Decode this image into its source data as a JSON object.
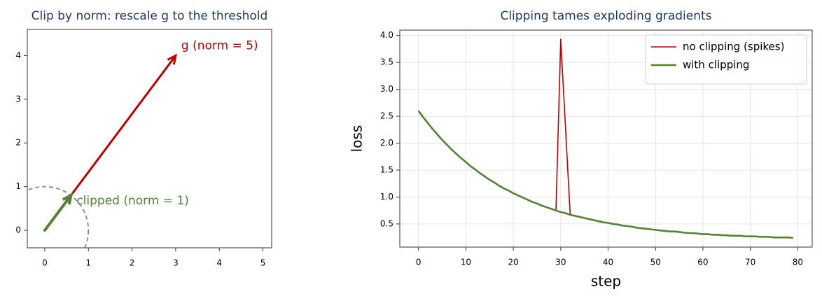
{
  "chart_data": [
    {
      "type": "vector",
      "title": "Clip by norm: rescale g to the threshold",
      "vectors": [
        {
          "label": "g  (norm = 5)",
          "color": "#c00000",
          "x": 3,
          "y": 4
        },
        {
          "label": "clipped (norm = 1)",
          "color": "#548235",
          "x": 0.6,
          "y": 0.8
        }
      ],
      "threshold": 1,
      "xlim": [
        -0.4,
        5.2
      ],
      "ylim": [
        -0.4,
        4.6
      ],
      "xticks": [
        0,
        1,
        2,
        3,
        4,
        5
      ],
      "yticks": [
        0,
        1,
        2,
        3,
        4
      ],
      "grid": false
    },
    {
      "type": "line",
      "title": "Clipping tames exploding gradients",
      "xlabel": "step",
      "ylabel": "loss",
      "x": [
        0,
        1,
        2,
        3,
        4,
        5,
        6,
        7,
        8,
        9,
        10,
        11,
        12,
        13,
        14,
        15,
        16,
        17,
        18,
        19,
        20,
        21,
        22,
        23,
        24,
        25,
        26,
        27,
        28,
        29,
        30,
        31,
        32,
        33,
        34,
        35,
        36,
        37,
        38,
        39,
        40,
        41,
        42,
        43,
        44,
        45,
        46,
        47,
        48,
        49,
        50,
        51,
        52,
        53,
        54,
        55,
        56,
        57,
        58,
        59,
        60,
        61,
        62,
        63,
        64,
        65,
        66,
        67,
        68,
        69,
        70,
        71,
        72,
        73,
        74,
        75,
        76,
        77,
        78,
        79
      ],
      "series": [
        {
          "name": "no clipping (spikes)",
          "color": "#c00000",
          "width": 1.6,
          "values": [
            2.6,
            2.48,
            2.37,
            2.26,
            2.16,
            2.06,
            1.97,
            1.88,
            1.8,
            1.72,
            1.65,
            1.57,
            1.51,
            1.44,
            1.38,
            1.32,
            1.27,
            1.21,
            1.16,
            1.12,
            1.07,
            1.03,
            0.99,
            0.95,
            0.91,
            0.88,
            0.84,
            0.81,
            0.78,
            0.75,
            3.93,
            2.3,
            0.67,
            0.65,
            0.63,
            0.61,
            0.59,
            0.57,
            0.55,
            0.53,
            0.52,
            0.5,
            0.49,
            0.47,
            0.46,
            0.45,
            0.43,
            0.42,
            0.41,
            0.4,
            0.39,
            0.38,
            0.37,
            0.36,
            0.36,
            0.35,
            0.34,
            0.33,
            0.33,
            0.32,
            0.31,
            0.31,
            0.3,
            0.3,
            0.29,
            0.29,
            0.28,
            0.28,
            0.28,
            0.27,
            0.27,
            0.27,
            0.26,
            0.26,
            0.26,
            0.25,
            0.25,
            0.25,
            0.25,
            0.24
          ]
        },
        {
          "name": "with clipping",
          "color": "#548235",
          "width": 2.6,
          "values": [
            2.6,
            2.48,
            2.37,
            2.26,
            2.16,
            2.06,
            1.97,
            1.88,
            1.8,
            1.72,
            1.65,
            1.57,
            1.51,
            1.44,
            1.38,
            1.32,
            1.27,
            1.21,
            1.16,
            1.12,
            1.07,
            1.03,
            0.99,
            0.95,
            0.91,
            0.88,
            0.84,
            0.81,
            0.78,
            0.75,
            0.72,
            0.7,
            0.67,
            0.65,
            0.63,
            0.61,
            0.59,
            0.57,
            0.55,
            0.53,
            0.52,
            0.5,
            0.49,
            0.47,
            0.46,
            0.45,
            0.43,
            0.42,
            0.41,
            0.4,
            0.39,
            0.38,
            0.37,
            0.36,
            0.36,
            0.35,
            0.34,
            0.33,
            0.33,
            0.32,
            0.31,
            0.31,
            0.3,
            0.3,
            0.29,
            0.29,
            0.28,
            0.28,
            0.28,
            0.27,
            0.27,
            0.27,
            0.26,
            0.26,
            0.26,
            0.25,
            0.25,
            0.25,
            0.25,
            0.24
          ]
        }
      ],
      "xlim": [
        -3.95,
        83.05
      ],
      "ylim": [
        0.07,
        4.1
      ],
      "xticks": [
        0,
        10,
        20,
        30,
        40,
        50,
        60,
        70,
        80
      ],
      "yticks": [
        0.5,
        {
          "value": 1.0,
          "label": "1.0"
        },
        1.5,
        {
          "value": 2.0,
          "label": "2.0"
        },
        2.5,
        {
          "value": 3.0,
          "label": "3.0"
        },
        3.5,
        {
          "value": 4.0,
          "label": "4.0"
        }
      ],
      "grid": true,
      "legend": "upper right"
    }
  ]
}
